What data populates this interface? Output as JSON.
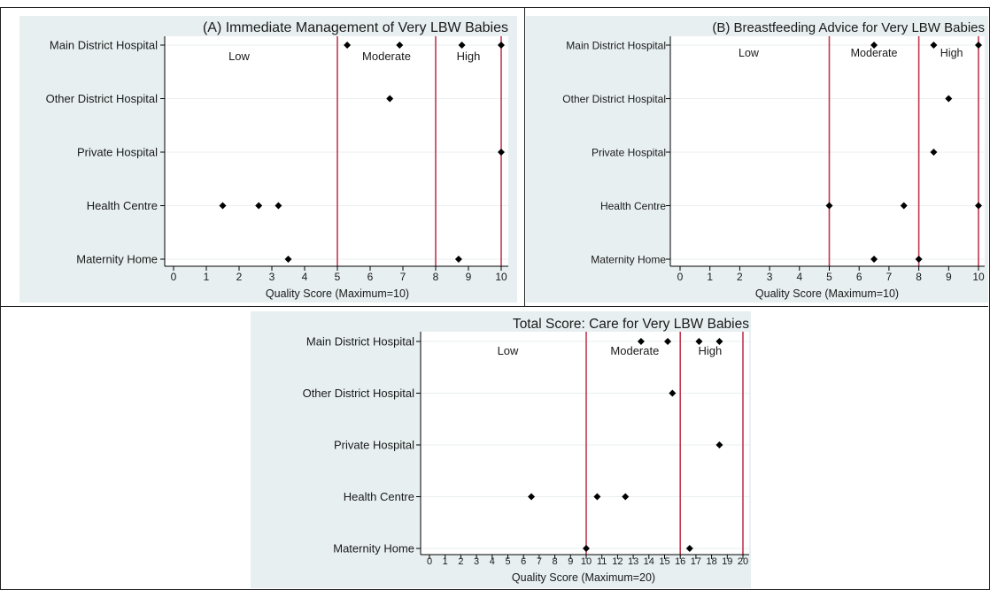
{
  "chart_data": [
    {
      "id": "A",
      "type": "scatter",
      "title": "(A) Immediate Management of Very LBW Babies",
      "xlabel": "Quality Score (Maximum=10)",
      "ylabel": "",
      "xlim": [
        0,
        10
      ],
      "xticks": [
        0,
        1,
        2,
        3,
        4,
        5,
        6,
        7,
        8,
        9,
        10
      ],
      "categories": [
        "Main District Hospital",
        "Other District Hospital",
        "Private Hospital",
        "Health Centre",
        "Maternity Home"
      ],
      "thresholds": [
        5,
        8,
        10
      ],
      "bands": [
        {
          "label": "Low",
          "x": 2
        },
        {
          "label": "Moderate",
          "x": 6.5
        },
        {
          "label": "High",
          "x": 9
        }
      ],
      "points": [
        {
          "category": "Main District Hospital",
          "x": [
            5.3,
            6.9,
            8.8,
            10
          ]
        },
        {
          "category": "Other District Hospital",
          "x": [
            6.6
          ]
        },
        {
          "category": "Private Hospital",
          "x": [
            10
          ]
        },
        {
          "category": "Health Centre",
          "x": [
            1.5,
            2.6,
            3.2
          ]
        },
        {
          "category": "Maternity Home",
          "x": [
            3.5,
            8.7
          ]
        }
      ],
      "grid": false,
      "legend": "none"
    },
    {
      "id": "B",
      "type": "scatter",
      "title": "(B) Breastfeeding Advice for Very LBW Babies",
      "xlabel": "Quality Score (Maximum=10)",
      "ylabel": "",
      "xlim": [
        0,
        10
      ],
      "xticks": [
        0,
        1,
        2,
        3,
        4,
        5,
        6,
        7,
        8,
        9,
        10
      ],
      "categories": [
        "Main District Hospital",
        "Other District Hospital",
        "Private Hospital",
        "Health Centre",
        "Maternity Home"
      ],
      "thresholds": [
        5,
        8,
        10
      ],
      "bands": [
        {
          "label": "Low",
          "x": 2.3
        },
        {
          "label": "Moderate",
          "x": 6.5
        },
        {
          "label": "High",
          "x": 9.1
        }
      ],
      "points": [
        {
          "category": "Main District Hospital",
          "x": [
            6.5,
            8.5,
            10
          ]
        },
        {
          "category": "Other District Hospital",
          "x": [
            9
          ]
        },
        {
          "category": "Private Hospital",
          "x": [
            8.5
          ]
        },
        {
          "category": "Health Centre",
          "x": [
            5,
            7.5,
            10
          ]
        },
        {
          "category": "Maternity Home",
          "x": [
            6.5,
            8
          ]
        }
      ],
      "grid": false,
      "legend": "none"
    },
    {
      "id": "Total",
      "type": "scatter",
      "title": "Total Score: Care for Very LBW Babies",
      "xlabel": "Quality Score (Maximum=20)",
      "ylabel": "",
      "xlim": [
        0,
        20
      ],
      "xticks": [
        0,
        1,
        2,
        3,
        4,
        5,
        6,
        7,
        8,
        9,
        10,
        11,
        12,
        13,
        14,
        15,
        16,
        17,
        18,
        19,
        20
      ],
      "categories": [
        "Main District Hospital",
        "Other District Hospital",
        "Private Hospital",
        "Health Centre",
        "Maternity Home"
      ],
      "thresholds": [
        10,
        16,
        20
      ],
      "bands": [
        {
          "label": "Low",
          "x": 5
        },
        {
          "label": "Moderate",
          "x": 13.1
        },
        {
          "label": "High",
          "x": 17.9
        }
      ],
      "points": [
        {
          "category": "Main District Hospital",
          "x": [
            13.5,
            15.2,
            17.2,
            18.5
          ]
        },
        {
          "category": "Other District Hospital",
          "x": [
            15.5
          ]
        },
        {
          "category": "Private Hospital",
          "x": [
            18.5
          ]
        },
        {
          "category": "Health Centre",
          "x": [
            6.5,
            10.7,
            12.5
          ]
        },
        {
          "category": "Maternity Home",
          "x": [
            10,
            16.6
          ]
        }
      ],
      "grid": false,
      "legend": "none"
    }
  ],
  "colors": {
    "panel_bg": "#e7eff1",
    "plot_bg": "#ffffff",
    "threshold_line": "#c0394f",
    "marker": "#000000",
    "gridline": "#eaeff1"
  }
}
